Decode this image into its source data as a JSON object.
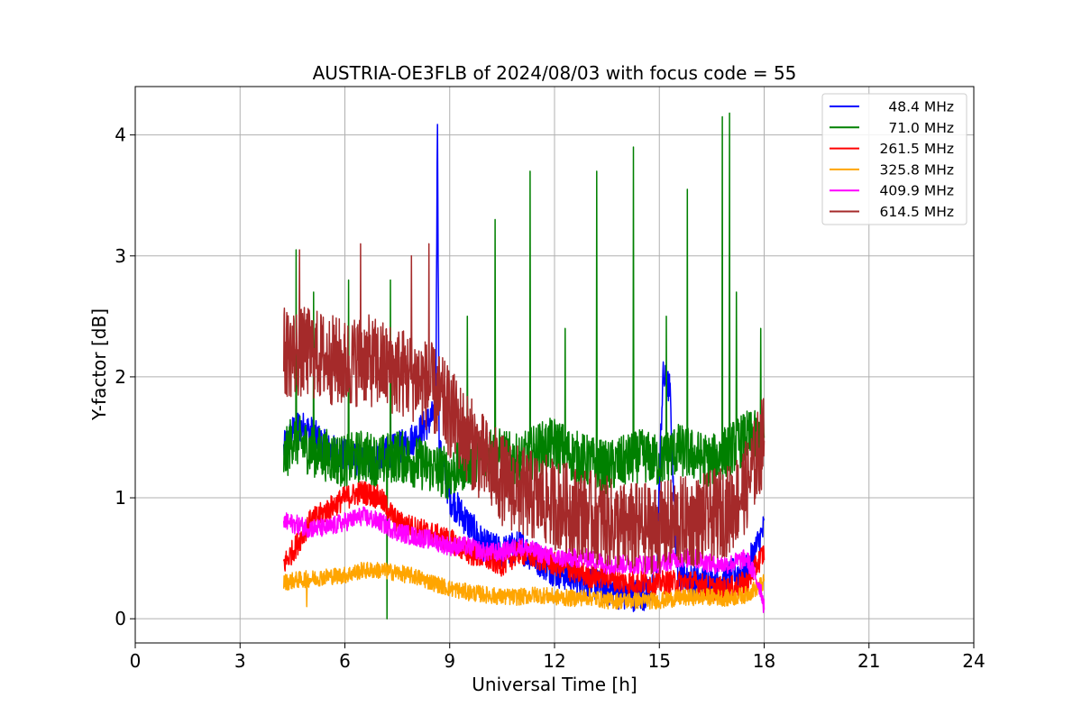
{
  "chart_data": {
    "type": "line",
    "title": "AUSTRIA-OE3FLB of 2024/08/03 with focus code = 55",
    "xlabel": "Universal Time [h]",
    "ylabel": "Y-factor [dB]",
    "xlim": [
      0,
      24
    ],
    "ylim": [
      -0.2,
      4.4
    ],
    "xticks": [
      0,
      3,
      6,
      9,
      12,
      15,
      18,
      21,
      24
    ],
    "yticks": [
      0,
      1,
      2,
      3,
      4
    ],
    "grid": true,
    "legend_position": "top-right",
    "series": [
      {
        "name": "48.4 MHz",
        "color": "#0000ff",
        "x": [
          4.25,
          4.6,
          5.0,
          5.5,
          6.0,
          6.5,
          7.0,
          7.5,
          8.0,
          8.3,
          8.6,
          8.65,
          8.7,
          9.0,
          9.5,
          10.0,
          10.5,
          11.0,
          11.5,
          12.0,
          12.5,
          13.0,
          13.5,
          14.0,
          14.5,
          14.9,
          15.1,
          15.3,
          15.5,
          16.0,
          16.5,
          17.0,
          17.5,
          17.8,
          18.0
        ],
        "y": [
          1.4,
          1.6,
          1.55,
          1.4,
          1.35,
          1.3,
          1.35,
          1.4,
          1.5,
          1.6,
          1.7,
          4.15,
          1.4,
          1.0,
          0.8,
          0.6,
          0.55,
          0.6,
          0.5,
          0.4,
          0.35,
          0.3,
          0.25,
          0.2,
          0.2,
          0.25,
          2.0,
          1.9,
          0.4,
          0.3,
          0.3,
          0.35,
          0.4,
          0.6,
          0.75
        ],
        "spikes": []
      },
      {
        "name": "71.0 MHz",
        "color": "#008000",
        "x": [
          4.25,
          4.5,
          5.0,
          5.5,
          6.0,
          6.5,
          7.0,
          7.5,
          8.0,
          8.5,
          9.0,
          9.5,
          10.0,
          10.5,
          11.0,
          11.5,
          12.0,
          12.5,
          13.0,
          13.5,
          14.0,
          14.5,
          15.0,
          15.5,
          16.0,
          16.5,
          17.0,
          17.5,
          18.0
        ],
        "y": [
          1.3,
          1.5,
          1.4,
          1.35,
          1.3,
          1.35,
          1.3,
          1.35,
          1.3,
          1.25,
          1.2,
          1.3,
          1.4,
          1.35,
          1.3,
          1.4,
          1.45,
          1.35,
          1.3,
          1.25,
          1.3,
          1.35,
          1.3,
          1.4,
          1.35,
          1.3,
          1.4,
          1.5,
          1.5
        ],
        "spikes": [
          [
            4.6,
            3.05
          ],
          [
            5.1,
            2.7
          ],
          [
            6.1,
            2.8
          ],
          [
            7.3,
            2.8
          ],
          [
            7.2,
            0.0
          ],
          [
            9.5,
            2.5
          ],
          [
            10.3,
            3.3
          ],
          [
            11.3,
            3.7
          ],
          [
            12.3,
            2.4
          ],
          [
            13.2,
            3.7
          ],
          [
            14.25,
            3.9
          ],
          [
            15.2,
            2.5
          ],
          [
            15.8,
            3.55
          ],
          [
            16.8,
            4.15
          ],
          [
            17.0,
            4.18
          ],
          [
            17.2,
            2.7
          ],
          [
            17.9,
            2.4
          ]
        ]
      },
      {
        "name": "261.5 MHz",
        "color": "#ff0000",
        "x": [
          4.25,
          4.6,
          5.0,
          5.5,
          6.0,
          6.5,
          7.0,
          7.5,
          8.0,
          8.5,
          9.0,
          9.5,
          10.0,
          10.5,
          11.0,
          11.5,
          12.0,
          12.5,
          13.0,
          13.5,
          14.0,
          14.5,
          15.0,
          15.5,
          16.0,
          16.5,
          17.0,
          17.5,
          18.0
        ],
        "y": [
          0.45,
          0.6,
          0.8,
          0.9,
          1.0,
          1.05,
          1.0,
          0.8,
          0.75,
          0.7,
          0.65,
          0.55,
          0.5,
          0.45,
          0.55,
          0.5,
          0.45,
          0.4,
          0.35,
          0.35,
          0.3,
          0.3,
          0.3,
          0.3,
          0.3,
          0.25,
          0.25,
          0.3,
          0.55
        ],
        "spikes": []
      },
      {
        "name": "325.8 MHz",
        "color": "#ffa500",
        "x": [
          4.25,
          4.6,
          5.0,
          5.5,
          6.0,
          6.5,
          7.0,
          7.5,
          8.0,
          8.5,
          9.0,
          9.5,
          10.0,
          10.5,
          11.0,
          11.5,
          12.0,
          12.5,
          13.0,
          13.5,
          14.0,
          14.5,
          15.0,
          15.5,
          16.0,
          16.5,
          17.0,
          17.5,
          18.0
        ],
        "y": [
          0.3,
          0.32,
          0.33,
          0.35,
          0.36,
          0.4,
          0.4,
          0.38,
          0.35,
          0.3,
          0.25,
          0.22,
          0.2,
          0.18,
          0.18,
          0.2,
          0.18,
          0.17,
          0.18,
          0.15,
          0.15,
          0.15,
          0.15,
          0.17,
          0.18,
          0.18,
          0.17,
          0.2,
          0.3
        ],
        "spikes": [
          [
            4.9,
            0.1
          ]
        ]
      },
      {
        "name": "409.9 MHz",
        "color": "#ff00ff",
        "x": [
          4.25,
          4.6,
          5.0,
          5.5,
          6.0,
          6.5,
          7.0,
          7.5,
          8.0,
          8.5,
          9.0,
          9.5,
          10.0,
          10.5,
          11.0,
          11.5,
          12.0,
          12.5,
          13.0,
          13.5,
          14.0,
          14.5,
          15.0,
          15.5,
          16.0,
          16.5,
          17.0,
          17.5,
          17.9,
          18.0
        ],
        "y": [
          0.8,
          0.78,
          0.75,
          0.75,
          0.8,
          0.85,
          0.8,
          0.72,
          0.68,
          0.65,
          0.6,
          0.6,
          0.55,
          0.55,
          0.6,
          0.55,
          0.5,
          0.5,
          0.5,
          0.45,
          0.45,
          0.45,
          0.45,
          0.5,
          0.5,
          0.45,
          0.45,
          0.5,
          0.25,
          0.1
        ],
        "spikes": []
      },
      {
        "name": "614.5 MHz",
        "color": "#a52a2a",
        "x": [
          4.25,
          4.6,
          5.0,
          5.5,
          6.0,
          6.5,
          7.0,
          7.5,
          8.0,
          8.5,
          9.0,
          9.5,
          10.0,
          10.5,
          11.0,
          11.5,
          12.0,
          12.5,
          13.0,
          13.5,
          14.0,
          14.5,
          15.0,
          15.5,
          16.0,
          16.5,
          17.0,
          17.5,
          18.0
        ],
        "y": [
          2.2,
          2.2,
          2.2,
          2.15,
          2.1,
          2.15,
          2.1,
          2.05,
          2.0,
          1.9,
          1.7,
          1.5,
          1.3,
          1.15,
          1.05,
          1.0,
          0.95,
          0.9,
          0.85,
          0.8,
          0.75,
          0.75,
          0.75,
          0.8,
          0.8,
          0.85,
          0.9,
          1.1,
          1.5
        ],
        "spikes": [
          [
            4.7,
            3.05
          ],
          [
            6.45,
            3.1
          ],
          [
            8.4,
            3.1
          ],
          [
            7.9,
            3.0
          ]
        ]
      }
    ]
  }
}
